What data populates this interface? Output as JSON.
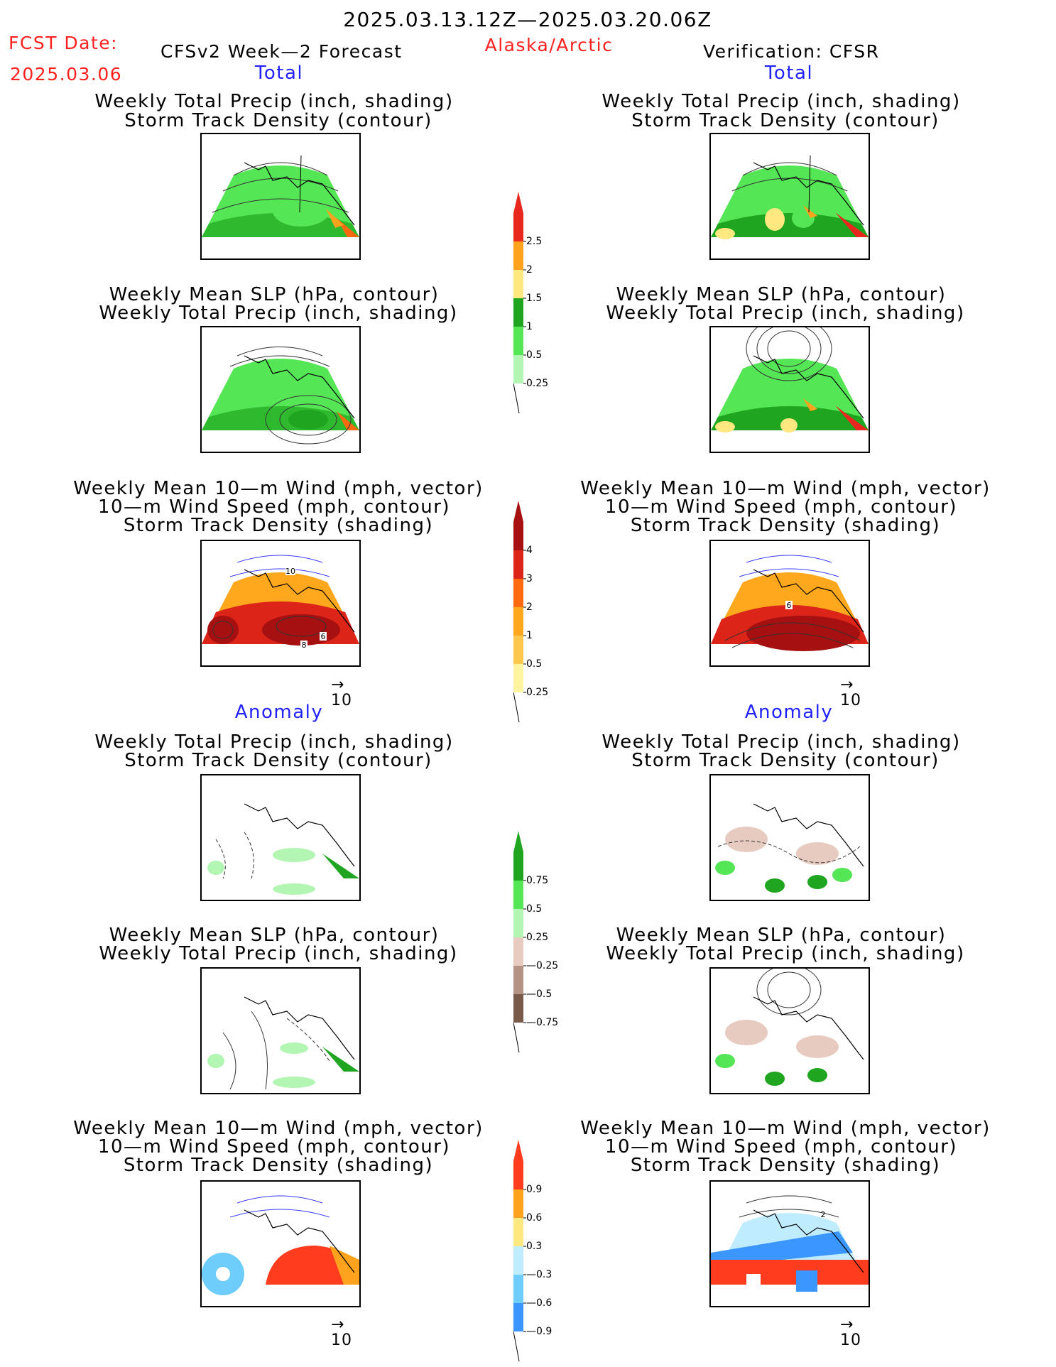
{
  "header": {
    "date_range": "2025.03.13.12Z—2025.03.20.06Z",
    "fcst_label": "FCST Date:",
    "fcst_date": "2025.03.06",
    "model": "CFSv2 Week—2 Forecast",
    "region": "Alaska/Arctic",
    "verification": "Verification: CFSR"
  },
  "sections": {
    "total_left": "Total",
    "total_right": "Total",
    "anomaly_left": "Anomaly",
    "anomaly_right": "Anomaly"
  },
  "titles": {
    "precip_track": [
      "Weekly Total Precip (inch, shading)",
      "Storm Track Density (contour)"
    ],
    "slp_precip": [
      "Weekly Mean SLP (hPa, contour)",
      "Weekly Total Precip (inch, shading)"
    ],
    "wind_track": [
      "Weekly Mean 10—m Wind (mph, vector)",
      "10—m Wind Speed (mph, contour)",
      "Storm Track Density (shading)"
    ]
  },
  "vector_ref": {
    "arrow": "→",
    "value": "10"
  },
  "contour_labels": {
    "total_fcst_wind": [
      "10",
      "6",
      "8"
    ],
    "total_obs_wind": [
      "6"
    ],
    "anom_obs_wind": [
      "2"
    ]
  },
  "colorbars": {
    "precip_total": {
      "labels": [
        "2.5",
        "2",
        "1.5",
        "1",
        "0.5",
        "0.25"
      ],
      "colors": [
        "#e8281e",
        "#ffa31f",
        "#ffe880",
        "#1fa51f",
        "#55e655",
        "#b3f5b3"
      ]
    },
    "track_total": {
      "labels": [
        "4",
        "3",
        "2",
        "1",
        "0.5",
        "0.25"
      ],
      "colors": [
        "#a61010",
        "#dc2419",
        "#ff6a10",
        "#ffa81e",
        "#ffc84c",
        "#fff4a0"
      ]
    },
    "precip_anom": {
      "labels": [
        "0.75",
        "0.5",
        "0.25",
        "—0.25",
        "—0.5",
        "—0.75"
      ],
      "colors": [
        "#1fa51f",
        "#55e655",
        "#b3f5b3",
        "#e8cbc0",
        "#b49284",
        "#7a5a4a"
      ]
    },
    "track_anom": {
      "labels": [
        "0.9",
        "0.6",
        "0.3",
        "—0.3",
        "—0.6",
        "—0.9"
      ],
      "colors": [
        "#ff3c1e",
        "#ffa31f",
        "#ffe880",
        "#c0ecff",
        "#6ecdfa",
        "#3c96ff"
      ]
    }
  }
}
